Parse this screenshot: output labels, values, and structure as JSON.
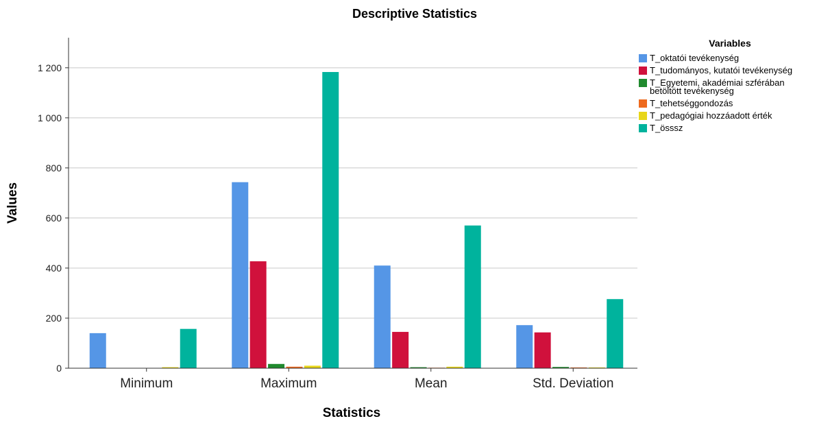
{
  "chart_data": {
    "type": "bar",
    "title": "Descriptive Statistics",
    "xlabel": "Statistics",
    "ylabel": "Values",
    "ylim": [
      0,
      1320
    ],
    "yticks": [
      0,
      200,
      400,
      600,
      800,
      1000,
      1200
    ],
    "ytick_labels": [
      "0",
      "200",
      "400",
      "600",
      "800",
      "1 000",
      "1 200"
    ],
    "grid": true,
    "legend_title": "Variables",
    "legend_position": "top-right",
    "categories": [
      "Minimum",
      "Maximum",
      "Mean",
      "Std. Deviation"
    ],
    "series": [
      {
        "name": "T_oktatói tevékenység",
        "color": "#5596e6",
        "values": [
          140,
          743,
          410,
          172
        ]
      },
      {
        "name": "T_tudományos, kutatói tevékenység",
        "color": "#d0113c",
        "values": [
          0,
          427,
          145,
          143
        ]
      },
      {
        "name": "T_Egyetemi, akadémiai szférában betöltött tevékenység",
        "color": "#208a2e",
        "values": [
          0,
          17,
          4,
          5
        ]
      },
      {
        "name": "T_tehetséggondozás",
        "color": "#ee6a1e",
        "values": [
          0,
          6,
          2,
          3
        ]
      },
      {
        "name": "T_pedagógiai hozzáadott érték",
        "color": "#e8d619",
        "values": [
          4,
          10,
          6,
          3
        ]
      },
      {
        "name": "T_össsz",
        "color": "#00b39d",
        "values": [
          157,
          1183,
          570,
          276
        ]
      }
    ]
  }
}
